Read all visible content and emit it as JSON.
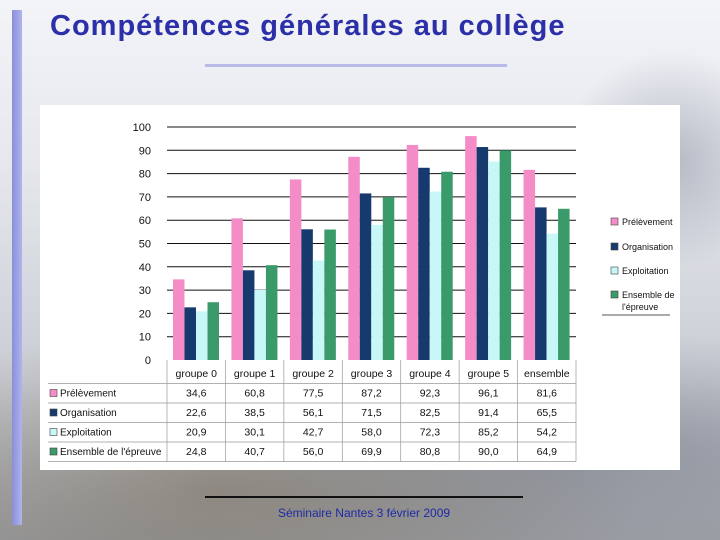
{
  "title": "Compétences générales au collège",
  "footer": "Séminaire Nantes 3 février 2009",
  "chart_data": {
    "type": "bar",
    "categories": [
      "groupe 0",
      "groupe 1",
      "groupe 2",
      "groupe 3",
      "groupe 4",
      "groupe 5",
      "ensemble"
    ],
    "ylim": [
      0,
      100
    ],
    "yticks": [
      0,
      10,
      20,
      30,
      40,
      50,
      60,
      70,
      80,
      90,
      100
    ],
    "grid": true,
    "legend_position": "right",
    "series": [
      {
        "name": "Prélèvement",
        "legend_label": "Prélèvement",
        "color": "#f48cc8",
        "values": [
          34.6,
          60.8,
          77.5,
          87.2,
          92.3,
          96.1,
          81.6
        ],
        "labels": [
          "34,6",
          "60,8",
          "77,5",
          "87,2",
          "92,3",
          "96,1",
          "81,6"
        ]
      },
      {
        "name": "Organisation",
        "legend_label": "Organisation",
        "color": "#173a6e",
        "values": [
          22.6,
          38.5,
          56.1,
          71.5,
          82.5,
          91.4,
          65.5
        ],
        "labels": [
          "22,6",
          "38,5",
          "56,1",
          "71,5",
          "82,5",
          "91,4",
          "65,5"
        ]
      },
      {
        "name": "Exploitation",
        "legend_label": "Exploitation",
        "color": "#c8f7f8",
        "values": [
          20.9,
          30.1,
          42.7,
          58.0,
          72.3,
          85.2,
          54.2
        ],
        "labels": [
          "20,9",
          "30,1",
          "42,7",
          "58,0",
          "72,3",
          "85,2",
          "54,2"
        ]
      },
      {
        "name": "Ensemble de l'épreuve",
        "legend_label": "Ensemble de l'épreuve",
        "color": "#3a9a6a",
        "values": [
          24.8,
          40.7,
          56.0,
          69.9,
          80.8,
          90.0,
          64.9
        ],
        "labels": [
          "24,8",
          "40,7",
          "56,0",
          "69,9",
          "80,8",
          "90,0",
          "64,9"
        ]
      }
    ]
  }
}
